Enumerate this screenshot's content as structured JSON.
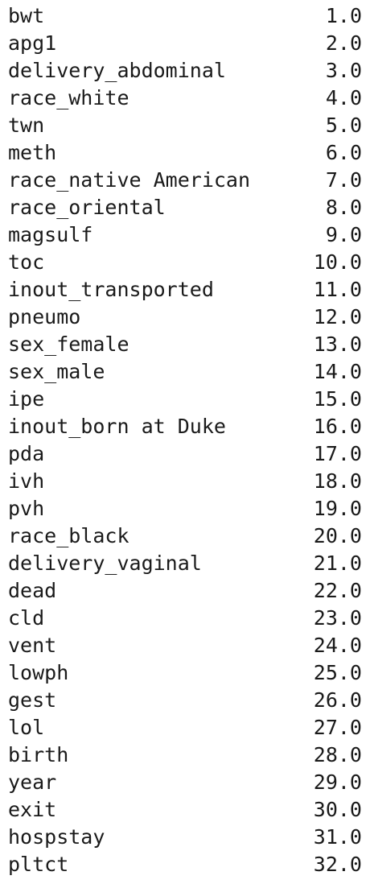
{
  "rows": [
    {
      "label": "bwt",
      "value": "1.0"
    },
    {
      "label": "apg1",
      "value": "2.0"
    },
    {
      "label": "delivery_abdominal",
      "value": "3.0"
    },
    {
      "label": "race_white",
      "value": "4.0"
    },
    {
      "label": "twn",
      "value": "5.0"
    },
    {
      "label": "meth",
      "value": "6.0"
    },
    {
      "label": "race_native American",
      "value": "7.0"
    },
    {
      "label": "race_oriental",
      "value": "8.0"
    },
    {
      "label": "magsulf",
      "value": "9.0"
    },
    {
      "label": "toc",
      "value": "10.0"
    },
    {
      "label": "inout_transported",
      "value": "11.0"
    },
    {
      "label": "pneumo",
      "value": "12.0"
    },
    {
      "label": "sex_female",
      "value": "13.0"
    },
    {
      "label": "sex_male",
      "value": "14.0"
    },
    {
      "label": "ipe",
      "value": "15.0"
    },
    {
      "label": "inout_born at Duke",
      "value": "16.0"
    },
    {
      "label": "pda",
      "value": "17.0"
    },
    {
      "label": "ivh",
      "value": "18.0"
    },
    {
      "label": "pvh",
      "value": "19.0"
    },
    {
      "label": "race_black",
      "value": "20.0"
    },
    {
      "label": "delivery_vaginal",
      "value": "21.0"
    },
    {
      "label": "dead",
      "value": "22.0"
    },
    {
      "label": "cld",
      "value": "23.0"
    },
    {
      "label": "vent",
      "value": "24.0"
    },
    {
      "label": "lowph",
      "value": "25.0"
    },
    {
      "label": "gest",
      "value": "26.0"
    },
    {
      "label": "lol",
      "value": "27.0"
    },
    {
      "label": "birth",
      "value": "28.0"
    },
    {
      "label": "year",
      "value": "29.0"
    },
    {
      "label": "exit",
      "value": "30.0"
    },
    {
      "label": "hospstay",
      "value": "31.0"
    },
    {
      "label": "pltct",
      "value": "32.0"
    }
  ]
}
